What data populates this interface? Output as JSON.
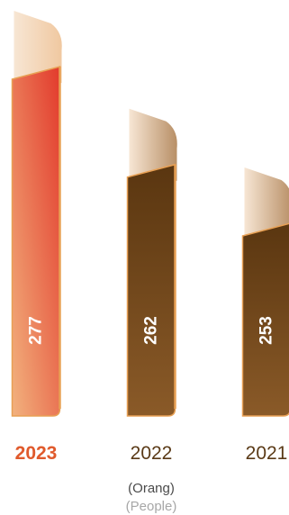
{
  "chart_data": {
    "type": "bar",
    "title": "",
    "xlabel": "",
    "ylabel": "",
    "categories": [
      "2023",
      "2022",
      "2021"
    ],
    "values": [
      277,
      262,
      253
    ],
    "unit_label_primary": "(Orang)",
    "unit_label_secondary": "(People)",
    "grid": false,
    "legend": "none",
    "highlight_category": "2023",
    "colors": {
      "highlight_top": "#e23a2c",
      "highlight_bottom": "#f2b27e",
      "highlight_label": "#e05a2c",
      "normal_top": "#5a3610",
      "normal_bottom": "#8a5a28",
      "normal_label": "#5a3a17",
      "fold_light": "#f7e6d4",
      "fold_dark": "#b88f66",
      "edge": "#e8a054"
    }
  }
}
